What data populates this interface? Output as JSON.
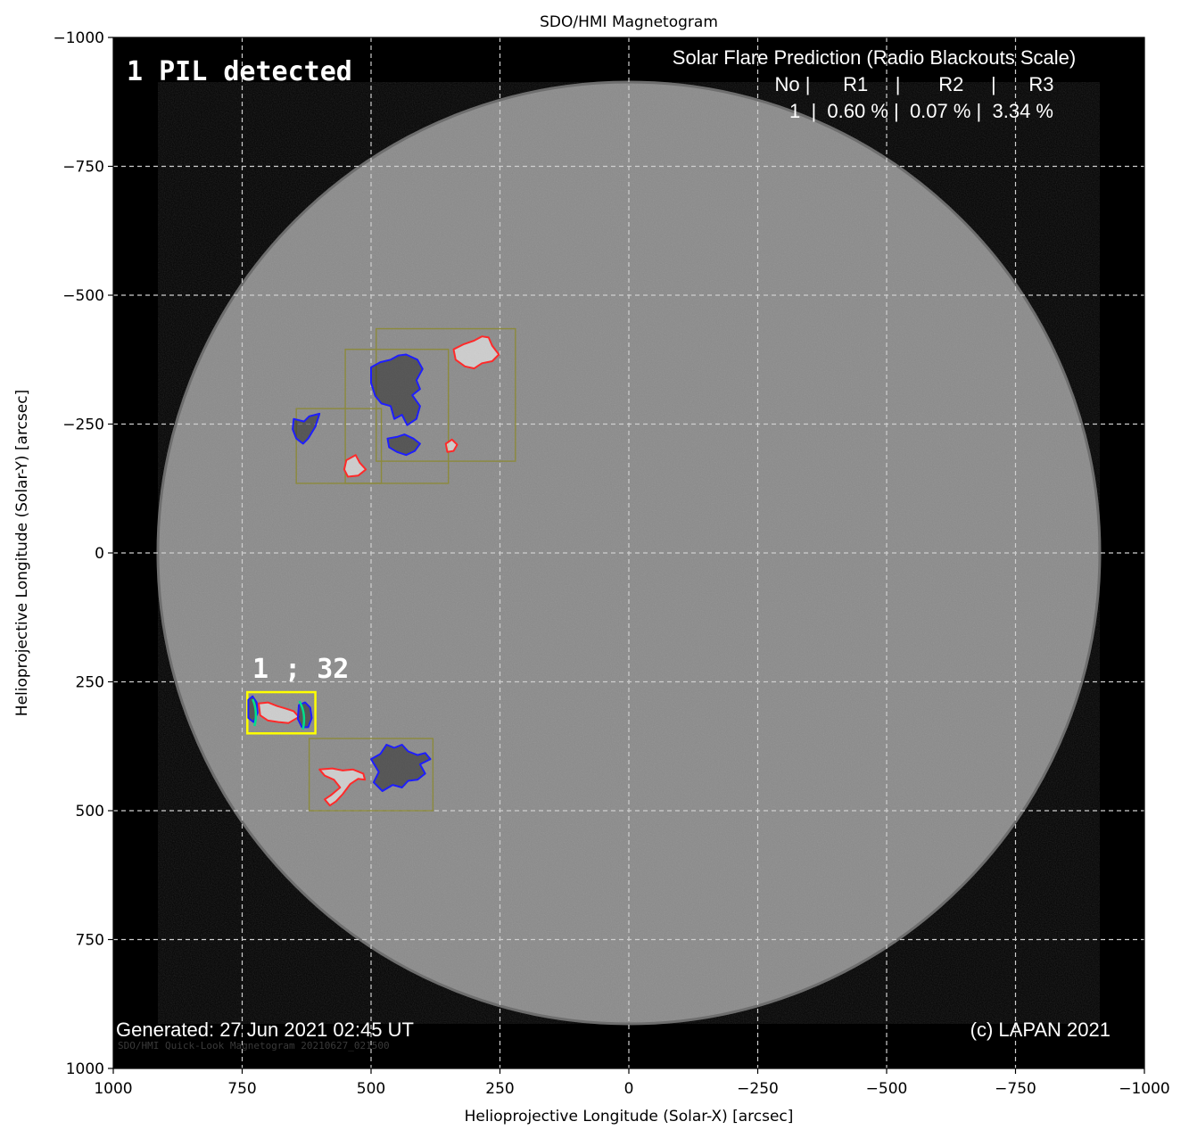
{
  "figure": {
    "title": "SDO/HMI Magnetogram",
    "xlabel": "Helioprojective Longitude (Solar-X) [arcsec]",
    "ylabel": "Helioprojective Longitude (Solar-Y) [arcsec]"
  },
  "axes": {
    "x_range": [
      1000,
      -1000
    ],
    "y_range": [
      -1000,
      1000
    ],
    "x_ticks": [
      1000,
      750,
      500,
      250,
      0,
      -250,
      -500,
      -750,
      -1000
    ],
    "y_ticks": [
      -1000,
      -750,
      -500,
      -250,
      0,
      250,
      500,
      750,
      1000
    ],
    "x_tick_labels": [
      "1000",
      "750",
      "500",
      "250",
      "0",
      "−250",
      "−500",
      "−750",
      "−1000"
    ],
    "y_tick_labels": [
      "−1000",
      "−750",
      "−500",
      "−250",
      "0",
      "250",
      "500",
      "750",
      "1000"
    ],
    "grid": true,
    "colors": {
      "background": "#000000",
      "disk": "#8a8a8a",
      "grid": "#cfcfcf"
    }
  },
  "overlay": {
    "pil_text": "1 PIL detected",
    "region_label": "1 ; 32",
    "prediction_title": "Solar Flare Prediction (Radio Blackouts Scale)",
    "prediction_header": "No |      R1     |       R2     |      R3",
    "prediction_row": "1  |  0.60 % |  0.07 % |  3.34 %",
    "generated": "Generated: 27 Jun 2021 02:45 UT",
    "copyright": "(c) LAPAN 2021",
    "faint_caption": "SDO/HMI  Quick-Look  Magnetogram  20210627_021500"
  },
  "regions": {
    "boxes": [
      {
        "x0": 490,
        "x1": 220,
        "y0": -435,
        "y1": -178,
        "kind": "ar"
      },
      {
        "x0": 550,
        "x1": 350,
        "y0": -395,
        "y1": -135,
        "kind": "ar"
      },
      {
        "x0": 645,
        "x1": 480,
        "y0": -280,
        "y1": -135,
        "kind": "ar"
      },
      {
        "x0": 740,
        "x1": 608,
        "y0": 270,
        "y1": 350,
        "kind": "pil"
      },
      {
        "x0": 620,
        "x1": 380,
        "y0": 360,
        "y1": 500,
        "kind": "ar"
      }
    ],
    "contours": [
      {
        "polarity": "positive",
        "color": "#ff2a2a",
        "points": [
          [
            340,
            -395
          ],
          [
            320,
            -405
          ],
          [
            300,
            -412
          ],
          [
            285,
            -420
          ],
          [
            272,
            -418
          ],
          [
            265,
            -402
          ],
          [
            252,
            -385
          ],
          [
            265,
            -372
          ],
          [
            285,
            -368
          ],
          [
            300,
            -358
          ],
          [
            318,
            -362
          ],
          [
            336,
            -375
          ],
          [
            340,
            -395
          ]
        ]
      },
      {
        "polarity": "negative",
        "color": "#1e1eff",
        "points": [
          [
            500,
            -360
          ],
          [
            482,
            -370
          ],
          [
            462,
            -375
          ],
          [
            447,
            -383
          ],
          [
            432,
            -385
          ],
          [
            410,
            -375
          ],
          [
            400,
            -357
          ],
          [
            412,
            -335
          ],
          [
            405,
            -318
          ],
          [
            420,
            -306
          ],
          [
            405,
            -285
          ],
          [
            412,
            -260
          ],
          [
            430,
            -248
          ],
          [
            440,
            -268
          ],
          [
            455,
            -260
          ],
          [
            462,
            -285
          ],
          [
            480,
            -290
          ],
          [
            492,
            -305
          ],
          [
            500,
            -330
          ],
          [
            500,
            -360
          ]
        ]
      },
      {
        "polarity": "negative",
        "color": "#1e1eff",
        "points": [
          [
            650,
            -260
          ],
          [
            630,
            -255
          ],
          [
            620,
            -265
          ],
          [
            600,
            -270
          ],
          [
            608,
            -245
          ],
          [
            622,
            -222
          ],
          [
            632,
            -212
          ],
          [
            645,
            -222
          ],
          [
            652,
            -240
          ],
          [
            650,
            -260
          ]
        ]
      },
      {
        "polarity": "negative",
        "color": "#1e1eff",
        "points": [
          [
            468,
            -222
          ],
          [
            450,
            -225
          ],
          [
            435,
            -230
          ],
          [
            418,
            -222
          ],
          [
            405,
            -212
          ],
          [
            415,
            -198
          ],
          [
            432,
            -190
          ],
          [
            450,
            -196
          ],
          [
            465,
            -205
          ],
          [
            468,
            -222
          ]
        ]
      },
      {
        "polarity": "positive",
        "color": "#ff2a2a",
        "points": [
          [
            548,
            -180
          ],
          [
            530,
            -190
          ],
          [
            522,
            -175
          ],
          [
            510,
            -162
          ],
          [
            525,
            -150
          ],
          [
            545,
            -148
          ],
          [
            552,
            -162
          ],
          [
            548,
            -180
          ]
        ]
      },
      {
        "polarity": "positive",
        "color": "#ff2a2a",
        "points": [
          [
            355,
            -212
          ],
          [
            343,
            -220
          ],
          [
            333,
            -210
          ],
          [
            340,
            -198
          ],
          [
            352,
            -196
          ],
          [
            355,
            -212
          ]
        ]
      },
      {
        "polarity": "positive",
        "color": "#ff2a2a",
        "points": [
          [
            718,
            292
          ],
          [
            700,
            290
          ],
          [
            682,
            297
          ],
          [
            665,
            302
          ],
          [
            650,
            307
          ],
          [
            640,
            318
          ],
          [
            660,
            330
          ],
          [
            680,
            328
          ],
          [
            700,
            325
          ],
          [
            715,
            315
          ],
          [
            718,
            292
          ]
        ]
      },
      {
        "polarity": "negative",
        "color": "#1e1eff",
        "points": [
          [
            738,
            285
          ],
          [
            730,
            278
          ],
          [
            722,
            290
          ],
          [
            720,
            310
          ],
          [
            728,
            328
          ],
          [
            738,
            320
          ],
          [
            738,
            285
          ]
        ]
      },
      {
        "polarity": "negative",
        "color": "#1e1eff",
        "points": [
          [
            640,
            295
          ],
          [
            628,
            290
          ],
          [
            618,
            300
          ],
          [
            615,
            320
          ],
          [
            622,
            338
          ],
          [
            634,
            338
          ],
          [
            642,
            322
          ],
          [
            640,
            295
          ]
        ]
      },
      {
        "polarity": "positive",
        "color": "#ff2a2a",
        "points": [
          [
            600,
            420
          ],
          [
            590,
            432
          ],
          [
            572,
            440
          ],
          [
            560,
            455
          ],
          [
            578,
            470
          ],
          [
            590,
            478
          ],
          [
            580,
            490
          ],
          [
            568,
            482
          ],
          [
            555,
            468
          ],
          [
            540,
            448
          ],
          [
            525,
            438
          ],
          [
            512,
            440
          ],
          [
            515,
            428
          ],
          [
            535,
            420
          ],
          [
            555,
            422
          ],
          [
            575,
            418
          ],
          [
            600,
            420
          ]
        ]
      },
      {
        "polarity": "negative",
        "color": "#1e1eff",
        "points": [
          [
            500,
            400
          ],
          [
            482,
            390
          ],
          [
            470,
            372
          ],
          [
            455,
            378
          ],
          [
            440,
            372
          ],
          [
            428,
            385
          ],
          [
            410,
            392
          ],
          [
            395,
            388
          ],
          [
            385,
            400
          ],
          [
            405,
            410
          ],
          [
            395,
            428
          ],
          [
            410,
            440
          ],
          [
            428,
            442
          ],
          [
            440,
            455
          ],
          [
            458,
            450
          ],
          [
            478,
            462
          ],
          [
            495,
            445
          ],
          [
            485,
            425
          ],
          [
            500,
            400
          ]
        ]
      }
    ]
  }
}
